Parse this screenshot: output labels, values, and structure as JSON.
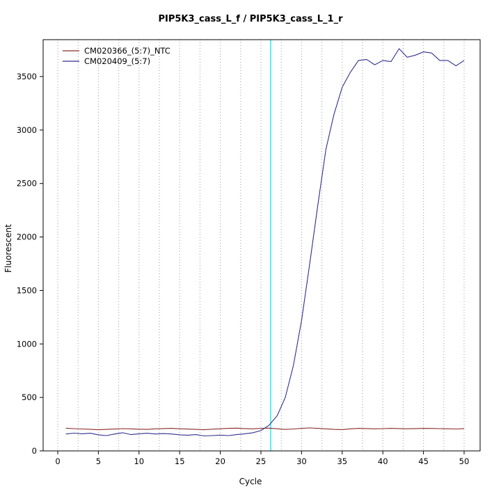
{
  "title": "PIP5K3_cass_L_f / PIP5K3_cass_L_1_r",
  "chart_data": {
    "type": "line",
    "title": "PIP5K3_cass_L_f / PIP5K3_cass_L_1_r",
    "xlabel": "Cycle",
    "ylabel": "Fluorescent",
    "xlim": [
      -1,
      51
    ],
    "ylim": [
      -60,
      3845
    ],
    "xticks": [
      0,
      5,
      10,
      15,
      20,
      25,
      30,
      35,
      40,
      45,
      50
    ],
    "yticks": [
      0,
      500,
      1000,
      1500,
      2000,
      2500,
      3000,
      3500
    ],
    "grid": {
      "vertical_dotted_step": 2.5,
      "color": "#9a9a9a"
    },
    "marker_line": {
      "x": 26.2,
      "color": "#00e5e5",
      "label": "threshold-cycle-marker"
    },
    "zero_line": {
      "y": 0,
      "color": "#8b2a2a"
    },
    "legend_position": "top-left",
    "x": [
      1,
      2,
      3,
      4,
      5,
      6,
      7,
      8,
      9,
      10,
      11,
      12,
      13,
      14,
      15,
      16,
      17,
      18,
      19,
      20,
      21,
      22,
      23,
      24,
      25,
      26,
      27,
      28,
      29,
      30,
      31,
      32,
      33,
      34,
      35,
      36,
      37,
      38,
      39,
      40,
      41,
      42,
      43,
      44,
      45,
      46,
      47,
      48,
      49,
      50
    ],
    "series": [
      {
        "name": "CM020366_(5:7)_NTC",
        "color": "#8b2a2a",
        "values": [
          212,
          208,
          205,
          202,
          198,
          201,
          204,
          208,
          206,
          203,
          201,
          206,
          209,
          211,
          207,
          204,
          201,
          198,
          203,
          207,
          211,
          213,
          209,
          206,
          211,
          213,
          207,
          201,
          205,
          211,
          215,
          211,
          206,
          201,
          199,
          206,
          211,
          209,
          206,
          208,
          211,
          209,
          207,
          209,
          211,
          210,
          208,
          207,
          205,
          209
        ]
      },
      {
        "name": "CM020409_(5:7)",
        "color": "#2f2f8f",
        "values": [
          158,
          166,
          160,
          165,
          150,
          143,
          158,
          170,
          152,
          160,
          165,
          158,
          162,
          158,
          150,
          147,
          152,
          140,
          143,
          148,
          143,
          152,
          160,
          170,
          190,
          240,
          330,
          500,
          800,
          1220,
          1750,
          2300,
          2820,
          3150,
          3400,
          3540,
          3650,
          3660,
          3610,
          3650,
          3640,
          3760,
          3680,
          3700,
          3730,
          3720,
          3650,
          3650,
          3600,
          3650
        ]
      }
    ]
  }
}
